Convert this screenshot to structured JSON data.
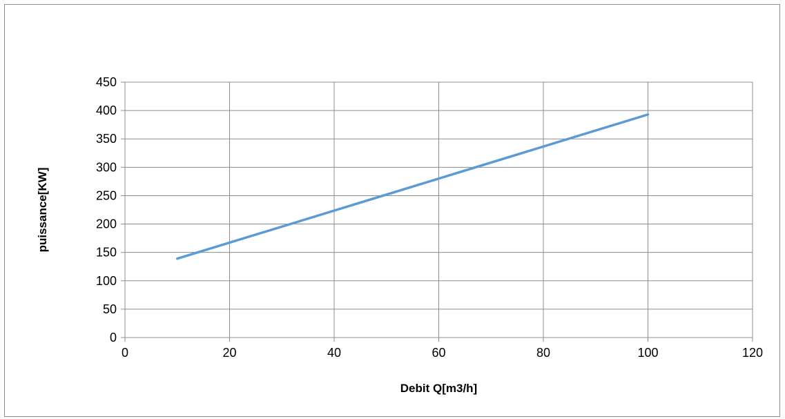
{
  "chart_data": {
    "type": "line",
    "title": "",
    "xlabel": "Debit Q[m3/h]",
    "ylabel": "puissance[KW]",
    "xlim": [
      0,
      120
    ],
    "ylim": [
      0,
      450
    ],
    "xticks": [
      0,
      20,
      40,
      60,
      80,
      100,
      120
    ],
    "yticks": [
      0,
      50,
      100,
      150,
      200,
      250,
      300,
      350,
      400,
      450
    ],
    "grid": true,
    "legend": "none",
    "series": [
      {
        "color": "#5b9bd5",
        "x": [
          10,
          100
        ],
        "y": [
          139,
          393
        ]
      }
    ]
  }
}
